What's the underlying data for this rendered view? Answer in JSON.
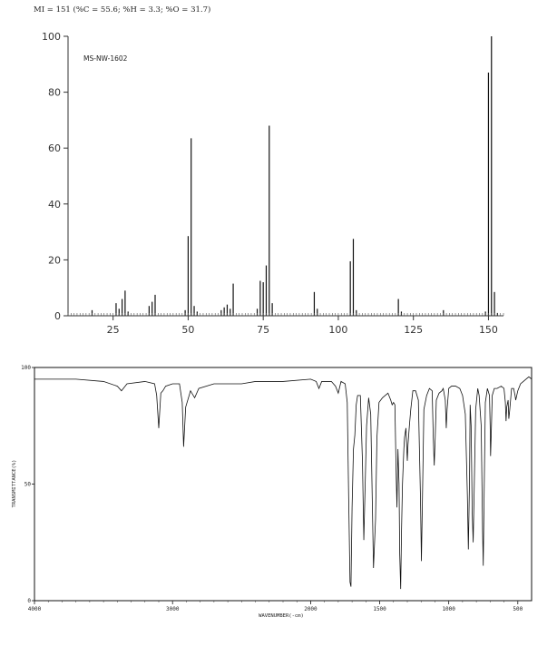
{
  "header_text": "MI = 151 (%C = 55.6; %H = 3.3; %O = 31.7)",
  "chart_data": [
    {
      "type": "bar",
      "label": "MS-NW-1602",
      "xlim": [
        10,
        155
      ],
      "ylim": [
        0,
        100
      ],
      "xticks": [
        25,
        50,
        75,
        100,
        125,
        150
      ],
      "yticks": [
        0,
        20,
        40,
        60,
        80,
        100
      ],
      "peaks": [
        {
          "mz": 18,
          "intensity": 2
        },
        {
          "mz": 26,
          "intensity": 4.5
        },
        {
          "mz": 27,
          "intensity": 2.5
        },
        {
          "mz": 28,
          "intensity": 6
        },
        {
          "mz": 29,
          "intensity": 9
        },
        {
          "mz": 30,
          "intensity": 1.5
        },
        {
          "mz": 37,
          "intensity": 3.5
        },
        {
          "mz": 38,
          "intensity": 5
        },
        {
          "mz": 39,
          "intensity": 7.5
        },
        {
          "mz": 49,
          "intensity": 2
        },
        {
          "mz": 50,
          "intensity": 28.5
        },
        {
          "mz": 51,
          "intensity": 63.5
        },
        {
          "mz": 52,
          "intensity": 3.5
        },
        {
          "mz": 53,
          "intensity": 1.5
        },
        {
          "mz": 61,
          "intensity": 2
        },
        {
          "mz": 62,
          "intensity": 3
        },
        {
          "mz": 63,
          "intensity": 4
        },
        {
          "mz": 64,
          "intensity": 2.5
        },
        {
          "mz": 65,
          "intensity": 11.5
        },
        {
          "mz": 73,
          "intensity": 2.5
        },
        {
          "mz": 74,
          "intensity": 12.5
        },
        {
          "mz": 75,
          "intensity": 12
        },
        {
          "mz": 76,
          "intensity": 18
        },
        {
          "mz": 77,
          "intensity": 68
        },
        {
          "mz": 78,
          "intensity": 4.5
        },
        {
          "mz": 92,
          "intensity": 8.5
        },
        {
          "mz": 93,
          "intensity": 2.5
        },
        {
          "mz": 104,
          "intensity": 19.5
        },
        {
          "mz": 105,
          "intensity": 27.5
        },
        {
          "mz": 106,
          "intensity": 2
        },
        {
          "mz": 120,
          "intensity": 6
        },
        {
          "mz": 121,
          "intensity": 1.5
        },
        {
          "mz": 135,
          "intensity": 2
        },
        {
          "mz": 149,
          "intensity": 1.5
        },
        {
          "mz": 150,
          "intensity": 87
        },
        {
          "mz": 151,
          "intensity": 100
        },
        {
          "mz": 152,
          "intensity": 8.5
        },
        {
          "mz": 153,
          "intensity": 1
        }
      ]
    },
    {
      "type": "line",
      "xlabel": "WAVENUMBER(-cm)",
      "ylabel": "TRANSMITTANCE(%)",
      "x_direction": "decreasing",
      "xlim": [
        4000,
        400
      ],
      "ylim": [
        0,
        100
      ],
      "xticks": [
        {
          "value": 4000,
          "label": "4000"
        },
        {
          "value": 3000,
          "label": "3000"
        },
        {
          "value": 2000,
          "label": "2000"
        },
        {
          "value": 1500,
          "label": "1500"
        },
        {
          "value": 1000,
          "label": "1000"
        },
        {
          "value": 500,
          "label": "500"
        }
      ],
      "yticks": [
        {
          "value": 0,
          "label": "0"
        },
        {
          "value": 50,
          "label": "50"
        },
        {
          "value": 100,
          "label": "100"
        }
      ],
      "points": [
        [
          4000,
          95
        ],
        [
          3700,
          95
        ],
        [
          3500,
          94
        ],
        [
          3400,
          92
        ],
        [
          3370,
          90
        ],
        [
          3330,
          93
        ],
        [
          3200,
          94
        ],
        [
          3130,
          93
        ],
        [
          3115,
          88
        ],
        [
          3100,
          74
        ],
        [
          3085,
          89
        ],
        [
          3070,
          90
        ],
        [
          3050,
          92
        ],
        [
          3000,
          93
        ],
        [
          2950,
          93
        ],
        [
          2930,
          85
        ],
        [
          2920,
          66
        ],
        [
          2905,
          83
        ],
        [
          2870,
          90
        ],
        [
          2840,
          87
        ],
        [
          2810,
          91
        ],
        [
          2700,
          93
        ],
        [
          2500,
          93
        ],
        [
          2400,
          94
        ],
        [
          2200,
          94
        ],
        [
          2000,
          95
        ],
        [
          1960,
          94
        ],
        [
          1940,
          91
        ],
        [
          1920,
          94
        ],
        [
          1850,
          94
        ],
        [
          1820,
          92
        ],
        [
          1800,
          89
        ],
        [
          1780,
          94
        ],
        [
          1750,
          93
        ],
        [
          1735,
          85
        ],
        [
          1725,
          45
        ],
        [
          1715,
          8
        ],
        [
          1708,
          6
        ],
        [
          1700,
          40
        ],
        [
          1690,
          65
        ],
        [
          1680,
          71
        ],
        [
          1670,
          84
        ],
        [
          1660,
          88
        ],
        [
          1640,
          88
        ],
        [
          1625,
          60
        ],
        [
          1615,
          26
        ],
        [
          1605,
          50
        ],
        [
          1595,
          75
        ],
        [
          1580,
          87
        ],
        [
          1565,
          80
        ],
        [
          1545,
          14
        ],
        [
          1530,
          35
        ],
        [
          1520,
          70
        ],
        [
          1505,
          85
        ],
        [
          1480,
          87
        ],
        [
          1460,
          88
        ],
        [
          1440,
          89
        ],
        [
          1420,
          86
        ],
        [
          1410,
          84
        ],
        [
          1400,
          85
        ],
        [
          1390,
          84
        ],
        [
          1380,
          52
        ],
        [
          1375,
          40
        ],
        [
          1368,
          65
        ],
        [
          1360,
          50
        ],
        [
          1355,
          20
        ],
        [
          1348,
          5
        ],
        [
          1342,
          30
        ],
        [
          1335,
          50
        ],
        [
          1325,
          65
        ],
        [
          1320,
          70
        ],
        [
          1310,
          74
        ],
        [
          1300,
          60
        ],
        [
          1295,
          67
        ],
        [
          1285,
          75
        ],
        [
          1275,
          82
        ],
        [
          1260,
          90
        ],
        [
          1240,
          90
        ],
        [
          1220,
          86
        ],
        [
          1205,
          45
        ],
        [
          1198,
          17
        ],
        [
          1190,
          45
        ],
        [
          1180,
          82
        ],
        [
          1160,
          88
        ],
        [
          1140,
          91
        ],
        [
          1120,
          90
        ],
        [
          1112,
          70
        ],
        [
          1105,
          58
        ],
        [
          1098,
          70
        ],
        [
          1090,
          86
        ],
        [
          1070,
          89
        ],
        [
          1050,
          90
        ],
        [
          1040,
          91
        ],
        [
          1025,
          86
        ],
        [
          1018,
          74
        ],
        [
          1012,
          82
        ],
        [
          1000,
          91
        ],
        [
          980,
          92
        ],
        [
          950,
          92
        ],
        [
          920,
          91
        ],
        [
          900,
          88
        ],
        [
          880,
          80
        ],
        [
          865,
          45
        ],
        [
          858,
          22
        ],
        [
          850,
          50
        ],
        [
          845,
          84
        ],
        [
          838,
          75
        ],
        [
          830,
          38
        ],
        [
          823,
          25
        ],
        [
          815,
          50
        ],
        [
          805,
          82
        ],
        [
          790,
          91
        ],
        [
          780,
          88
        ],
        [
          765,
          75
        ],
        [
          755,
          30
        ],
        [
          750,
          15
        ],
        [
          745,
          40
        ],
        [
          735,
          85
        ],
        [
          720,
          91
        ],
        [
          705,
          88
        ],
        [
          700,
          75
        ],
        [
          697,
          62
        ],
        [
          692,
          72
        ],
        [
          685,
          88
        ],
        [
          670,
          91
        ],
        [
          650,
          91
        ],
        [
          620,
          92
        ],
        [
          600,
          91
        ],
        [
          590,
          85
        ],
        [
          585,
          77
        ],
        [
          580,
          83
        ],
        [
          570,
          86
        ],
        [
          565,
          78
        ],
        [
          558,
          82
        ],
        [
          545,
          91
        ],
        [
          530,
          91
        ],
        [
          520,
          88
        ],
        [
          515,
          86
        ],
        [
          500,
          90
        ],
        [
          480,
          93
        ],
        [
          460,
          94
        ],
        [
          440,
          95
        ],
        [
          420,
          96
        ],
        [
          400,
          95
        ]
      ]
    }
  ]
}
